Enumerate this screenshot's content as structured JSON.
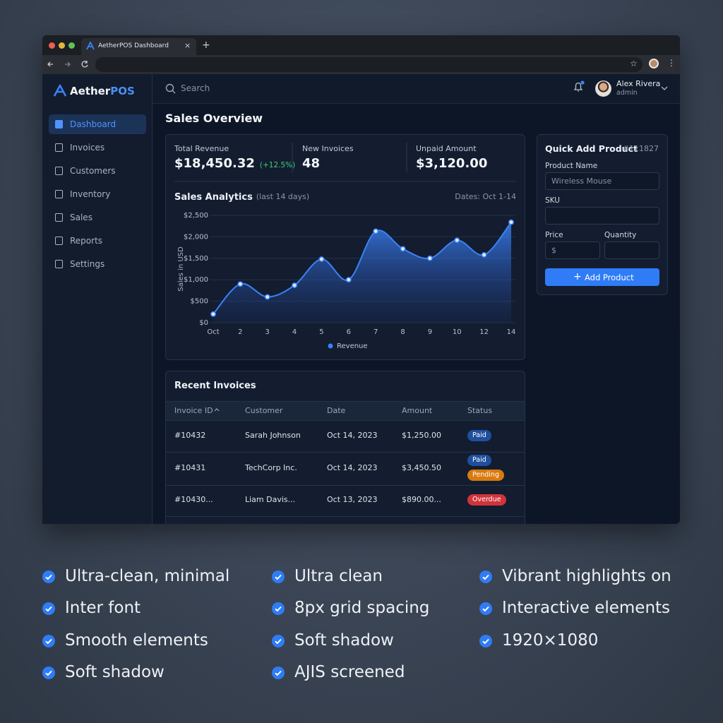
{
  "browser": {
    "tab_title": "AetherPOS Dashboard"
  },
  "sidebar": {
    "logo_main": "Aether",
    "logo_accent": "POS",
    "nav": [
      "Dashboard",
      "Invoices",
      "Customers",
      "Inventory",
      "Sales",
      "Reports",
      "Settings"
    ],
    "active": 0
  },
  "header": {
    "search_placeholder": "Search",
    "user_name": "Alex Rivera",
    "user_role": "admin"
  },
  "page_title": "Sales Overview",
  "stats": [
    {
      "label": "Total Revenue",
      "value": "$18,450.32",
      "change": "(+12.5%)"
    },
    {
      "label": "New Invoices",
      "value": "48"
    },
    {
      "label": "Unpaid Amount",
      "value": "$3,120.00"
    }
  ],
  "chart_data": {
    "type": "area",
    "title": "Sales Analytics",
    "subtitle": "(last 14 days)",
    "date_range": "Dates: Oct 1-14",
    "y_label": "Sales in USD",
    "categories": [
      "Oct",
      "2",
      "3",
      "4",
      "5",
      "6",
      "7",
      "8",
      "9",
      "10",
      "12",
      "14"
    ],
    "series": [
      {
        "name": "Revenue",
        "color": "#3b82f6",
        "values": [
          200,
          900,
          600,
          870,
          1480,
          1000,
          2130,
          1720,
          1500,
          1920,
          1580,
          2340
        ]
      }
    ],
    "ylim": [
      0,
      2500
    ],
    "yticks": [
      {
        "value": 0,
        "label": "$0"
      },
      {
        "value": 500,
        "label": "$500"
      },
      {
        "value": 1000,
        "label": "$1,000"
      },
      {
        "value": 1500,
        "label": "$1,500"
      },
      {
        "value": 2000,
        "label": "$2,000"
      },
      {
        "value": 2500,
        "label": "$2,500"
      }
    ],
    "grid": true,
    "legend": "bottom"
  },
  "quick_add": {
    "title": "Quick Add Product",
    "id": "#111827",
    "fields": [
      {
        "label": "Product Name",
        "placeholder": "Wireless Mouse"
      },
      {
        "label": "SKU"
      },
      {
        "label": "Price",
        "placeholder": "$"
      },
      {
        "label": "Quantity"
      }
    ],
    "button": "Add Product"
  },
  "invoices": {
    "title": "Recent Invoices",
    "columns": [
      "Invoice ID",
      "Customer",
      "Date",
      "Amount",
      "Status"
    ],
    "rows": [
      [
        "#10432",
        "Sarah Johnson",
        "Oct 14, 2023",
        "$1,250.00",
        [
          {
            "text": "Paid",
            "color": "#1f4f9e"
          }
        ]
      ],
      [
        "#10431",
        "TechCorp Inc.",
        "Oct 14, 2023",
        "$3,450.50",
        [
          {
            "text": "Paid",
            "color": "#1f4f9e"
          },
          {
            "text": "Pending",
            "color": "#d97a0f"
          }
        ]
      ],
      [
        "#10430...",
        "Liam Davis...",
        "Oct 13, 2023",
        "$890.00...",
        [
          {
            "text": "Overdue",
            "color": "#d0343a"
          }
        ]
      ]
    ]
  },
  "features": [
    [
      "Ultra-clean, minimal",
      "Inter font",
      "Smooth elements",
      "Soft shadow"
    ],
    [
      "Ultra clean",
      "8px grid spacing",
      "Soft shadow",
      "AJIS screened"
    ],
    [
      "Vibrant highlights on",
      "Interactive elements",
      "1920×1080"
    ]
  ]
}
